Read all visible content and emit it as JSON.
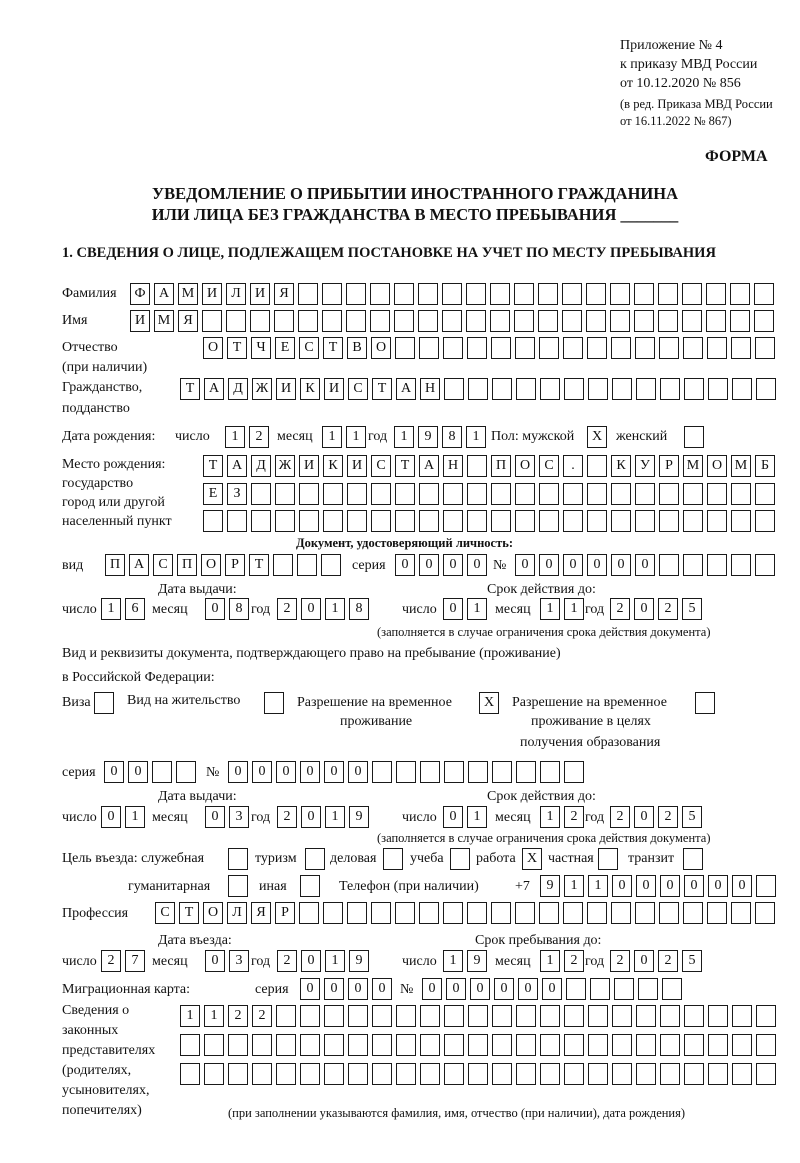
{
  "header": {
    "appendix": [
      "Приложение № 4",
      "к приказу МВД России",
      "от 10.12.2020 № 856"
    ],
    "edition": [
      "(в ред. Приказа МВД России",
      "от 16.11.2022 № 867)"
    ],
    "forma": "ФОРМА",
    "title_line1": "УВЕДОМЛЕНИЕ О ПРИБЫТИИ ИНОСТРАННОГО ГРАЖДАНИНА",
    "title_line2": "ИЛИ ЛИЦА БЕЗ ГРАЖДАНСТВА В МЕСТО ПРЕБЫВАНИЯ _______",
    "section1": "1. СВЕДЕНИЯ О ЛИЦЕ, ПОДЛЕЖАЩЕМ ПОСТАНОВКЕ НА УЧЕТ ПО МЕСТУ ПРЕБЫВАНИЯ"
  },
  "labels": {
    "surname": "Фамилия",
    "name": "Имя",
    "patronymic": "Отчество",
    "patronymic_note": "(при наличии)",
    "citizenship": "Гражданство,",
    "citizenship2": "подданство",
    "birth_date": "Дата рождения:",
    "day": "число",
    "month": "месяц",
    "year": "год",
    "sex": "Пол: мужской",
    "female": "женский",
    "birth_place": [
      "Место рождения:",
      "государство",
      "город или другой",
      "населенный пункт"
    ],
    "id_doc": "Документ, удостоверяющий личность:",
    "kind": "вид",
    "series": "серия",
    "number": "№",
    "issue_date": "Дата выдачи:",
    "valid_until": "Срок действия до:",
    "valid_note": "(заполняется в случае ограничения срока действия документа)",
    "right_doc1": "Вид и реквизиты документа, подтверждающего право на пребывание (проживание)",
    "right_doc2": "в Российской Федерации:",
    "visa": "Виза",
    "residence": "Вид на жительство",
    "temp_permit": [
      "Разрешение на временное",
      "проживание"
    ],
    "temp_permit_edu": [
      "Разрешение на временное",
      "проживание в целях",
      "получения образования"
    ],
    "purpose": "Цель въезда: служебная",
    "tourism": "туризм",
    "business": "деловая",
    "study": "учеба",
    "work": "работа",
    "private": "частная",
    "transit": "транзит",
    "humanitarian": "гуманитарная",
    "other": "иная",
    "phone": "Телефон (при наличии)",
    "phone_prefix": "+7",
    "profession": "Профессия",
    "entry_date": "Дата въезда:",
    "stay_until": "Срок пребывания до:",
    "migration_card": "Миграционная карта:",
    "representatives": [
      "Сведения о",
      "законных",
      "представителях",
      "(родителях,",
      "усыновителях,",
      "попечителях)"
    ],
    "representatives_note": "(при заполнении указываются фамилия, имя, отчество (при наличии), дата рождения)"
  },
  "fields": {
    "surname": "ФАМИЛИЯ",
    "name": "ИМЯ",
    "patronymic": "ОТЧЕСТВО",
    "citizenship": "ТАДЖИКИСТАН",
    "birth_day": "12",
    "birth_month": "11",
    "birth_year": "1981",
    "sex_male": "X",
    "sex_female": "",
    "birth_place_1": "ТАДЖИКИСТАН ПОС. КУРМОМБ",
    "birth_place_2": "ЕЗ",
    "birth_place_3": "",
    "id_kind": "ПАСПОРТ",
    "id_series": "0000",
    "id_number": "000000",
    "id_issue_day": "16",
    "id_issue_month": "08",
    "id_issue_year": "2018",
    "id_valid_day": "01",
    "id_valid_month": "11",
    "id_valid_year": "2025",
    "visa": "",
    "residence": "",
    "temp_permit": "X",
    "temp_permit_edu": "",
    "rd_series": "00",
    "rd_number": "000000",
    "rd_issue_day": "01",
    "rd_issue_month": "03",
    "rd_issue_year": "2019",
    "rd_valid_day": "01",
    "rd_valid_month": "12",
    "rd_valid_year": "2025",
    "purpose_official": "",
    "purpose_tourism": "",
    "purpose_business": "",
    "purpose_study": "",
    "purpose_work": "X",
    "purpose_private": "",
    "purpose_transit": "",
    "purpose_humanitarian": "",
    "purpose_other": "",
    "phone": "911000000",
    "profession": "СТОЛЯР",
    "entry_day": "27",
    "entry_month": "03",
    "entry_year": "2019",
    "stay_day": "19",
    "stay_month": "12",
    "stay_year": "2025",
    "mc_series": "0000",
    "mc_number": "000000",
    "rep_1": "1122",
    "rep_2": "",
    "rep_3": ""
  }
}
